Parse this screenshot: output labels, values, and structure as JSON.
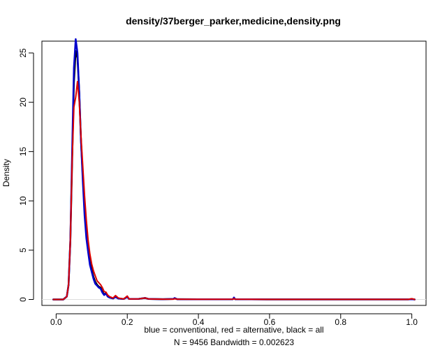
{
  "chart_data": {
    "type": "line",
    "title": "density/37berger_parker,medicine,density.png",
    "xlabel_line1": "blue = conventional, red = alternative, black = all",
    "xlabel_line2": "N = 9456   Bandwidth = 0.002623",
    "ylabel": "Density",
    "xlim": [
      -0.04,
      1.04
    ],
    "ylim": [
      -0.6,
      26.2
    ],
    "x_ticks": [
      0.0,
      0.2,
      0.4,
      0.6,
      0.8,
      1.0
    ],
    "x_tick_labels": [
      "0.0",
      "0.2",
      "0.4",
      "0.6",
      "0.8",
      "1.0"
    ],
    "y_ticks": [
      0,
      5,
      10,
      15,
      20,
      25
    ],
    "y_tick_labels": [
      "0",
      "5",
      "10",
      "15",
      "20",
      "25"
    ],
    "grid": false,
    "series": [
      {
        "color": "#000000",
        "width": 2.5,
        "points": [
          [
            -0.008,
            0
          ],
          [
            0.02,
            0
          ],
          [
            0.03,
            0.3
          ],
          [
            0.035,
            1.5
          ],
          [
            0.04,
            6
          ],
          [
            0.045,
            14
          ],
          [
            0.05,
            22
          ],
          [
            0.055,
            25.2
          ],
          [
            0.06,
            24.5
          ],
          [
            0.065,
            21
          ],
          [
            0.07,
            16
          ],
          [
            0.075,
            12.5
          ],
          [
            0.08,
            9.5
          ],
          [
            0.085,
            7
          ],
          [
            0.09,
            5
          ],
          [
            0.095,
            3.8
          ],
          [
            0.1,
            3
          ],
          [
            0.105,
            2.3
          ],
          [
            0.11,
            1.8
          ],
          [
            0.115,
            1.5
          ],
          [
            0.12,
            1.3
          ],
          [
            0.125,
            1.2
          ],
          [
            0.13,
            0.8
          ],
          [
            0.135,
            0.5
          ],
          [
            0.14,
            0.65
          ],
          [
            0.145,
            0.3
          ],
          [
            0.15,
            0.2
          ],
          [
            0.16,
            0.1
          ],
          [
            0.167,
            0.3
          ],
          [
            0.175,
            0.1
          ],
          [
            0.19,
            0.05
          ],
          [
            0.2,
            0.3
          ],
          [
            0.205,
            0.05
          ],
          [
            0.23,
            0.05
          ],
          [
            0.25,
            0.15
          ],
          [
            0.26,
            0.05
          ],
          [
            0.3,
            0.03
          ],
          [
            0.33,
            0.05
          ],
          [
            0.333,
            0.12
          ],
          [
            0.34,
            0.03
          ],
          [
            0.4,
            0.02
          ],
          [
            0.497,
            0.03
          ],
          [
            0.5,
            0.15
          ],
          [
            0.503,
            0.03
          ],
          [
            0.6,
            0.01
          ],
          [
            0.8,
            0.01
          ],
          [
            0.99,
            0.01
          ],
          [
            1.0,
            0.05
          ],
          [
            1.008,
            0
          ]
        ]
      },
      {
        "color": "#0000cc",
        "width": 2.5,
        "points": [
          [
            -0.008,
            0
          ],
          [
            0.02,
            0
          ],
          [
            0.03,
            0.3
          ],
          [
            0.035,
            1.5
          ],
          [
            0.04,
            6
          ],
          [
            0.045,
            15
          ],
          [
            0.05,
            23.5
          ],
          [
            0.055,
            26.4
          ],
          [
            0.06,
            25
          ],
          [
            0.065,
            21
          ],
          [
            0.07,
            16
          ],
          [
            0.075,
            12
          ],
          [
            0.08,
            8.5
          ],
          [
            0.085,
            6.2
          ],
          [
            0.09,
            4.8
          ],
          [
            0.095,
            3.5
          ],
          [
            0.1,
            2.8
          ],
          [
            0.105,
            2.1
          ],
          [
            0.11,
            1.6
          ],
          [
            0.115,
            1.4
          ],
          [
            0.12,
            1.2
          ],
          [
            0.125,
            1.1
          ],
          [
            0.13,
            0.7
          ],
          [
            0.135,
            0.45
          ],
          [
            0.14,
            0.6
          ],
          [
            0.145,
            0.3
          ],
          [
            0.15,
            0.2
          ],
          [
            0.16,
            0.1
          ],
          [
            0.167,
            0.25
          ],
          [
            0.175,
            0.1
          ],
          [
            0.19,
            0.05
          ],
          [
            0.2,
            0.25
          ],
          [
            0.205,
            0.05
          ],
          [
            0.23,
            0.05
          ],
          [
            0.25,
            0.15
          ],
          [
            0.26,
            0.05
          ],
          [
            0.3,
            0.03
          ],
          [
            0.33,
            0.05
          ],
          [
            0.333,
            0.15
          ],
          [
            0.34,
            0.03
          ],
          [
            0.4,
            0.02
          ],
          [
            0.497,
            0.03
          ],
          [
            0.5,
            0.2
          ],
          [
            0.503,
            0.03
          ],
          [
            0.6,
            0.01
          ],
          [
            0.8,
            0.01
          ],
          [
            0.99,
            0.01
          ],
          [
            1.0,
            0.03
          ],
          [
            1.008,
            0
          ]
        ]
      },
      {
        "color": "#dd0000",
        "width": 2,
        "points": [
          [
            -0.008,
            0
          ],
          [
            0.02,
            0
          ],
          [
            0.03,
            0.3
          ],
          [
            0.035,
            1.5
          ],
          [
            0.04,
            6
          ],
          [
            0.045,
            14
          ],
          [
            0.05,
            19.5
          ],
          [
            0.055,
            20.5
          ],
          [
            0.06,
            22.1
          ],
          [
            0.065,
            20
          ],
          [
            0.07,
            16.5
          ],
          [
            0.075,
            13.5
          ],
          [
            0.08,
            10.5
          ],
          [
            0.085,
            8
          ],
          [
            0.09,
            6
          ],
          [
            0.095,
            4.6
          ],
          [
            0.1,
            3.6
          ],
          [
            0.105,
            2.9
          ],
          [
            0.11,
            2.4
          ],
          [
            0.115,
            1.9
          ],
          [
            0.12,
            1.7
          ],
          [
            0.125,
            1.5
          ],
          [
            0.13,
            1.2
          ],
          [
            0.135,
            0.8
          ],
          [
            0.14,
            0.75
          ],
          [
            0.145,
            0.45
          ],
          [
            0.15,
            0.3
          ],
          [
            0.16,
            0.15
          ],
          [
            0.167,
            0.4
          ],
          [
            0.175,
            0.15
          ],
          [
            0.19,
            0.05
          ],
          [
            0.2,
            0.35
          ],
          [
            0.205,
            0.05
          ],
          [
            0.23,
            0.05
          ],
          [
            0.25,
            0.15
          ],
          [
            0.26,
            0.05
          ],
          [
            0.3,
            0.03
          ],
          [
            0.33,
            0.03
          ],
          [
            0.333,
            0.08
          ],
          [
            0.34,
            0.03
          ],
          [
            0.4,
            0.02
          ],
          [
            0.497,
            0.03
          ],
          [
            0.5,
            0.1
          ],
          [
            0.503,
            0.03
          ],
          [
            0.6,
            0.01
          ],
          [
            0.8,
            0.01
          ],
          [
            0.99,
            0.01
          ],
          [
            1.0,
            0.08
          ],
          [
            1.008,
            0
          ]
        ]
      }
    ]
  }
}
